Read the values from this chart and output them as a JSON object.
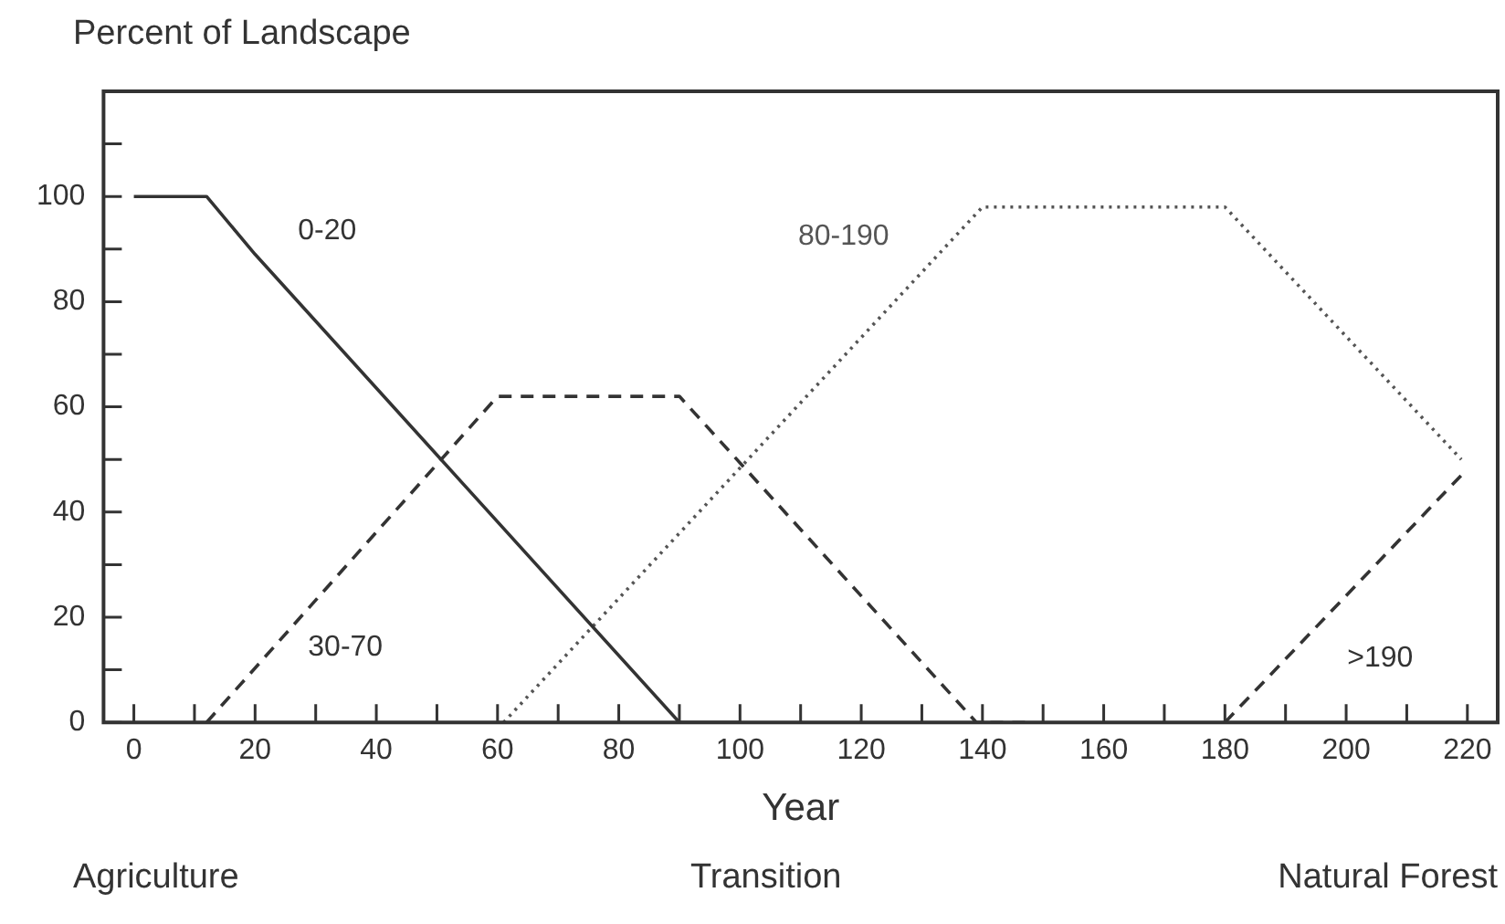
{
  "chart_data": {
    "type": "line",
    "ylabel": "Percent of Landscape",
    "xlabel": "Year",
    "xlim": [
      -5,
      225
    ],
    "ylim": [
      0,
      120
    ],
    "xticks": [
      0,
      {
        "value": 10,
        "label": null
      },
      20,
      {
        "value": 30,
        "label": null
      },
      40,
      {
        "value": 50,
        "label": null
      },
      60,
      {
        "value": 70,
        "label": null
      },
      80,
      {
        "value": 90,
        "label": null
      },
      100,
      {
        "value": 110,
        "label": null
      },
      120,
      {
        "value": 130,
        "label": null
      },
      140,
      {
        "value": 150,
        "label": null
      },
      160,
      {
        "value": 170,
        "label": null
      },
      180,
      {
        "value": 190,
        "label": null
      },
      200,
      {
        "value": 210,
        "label": null
      },
      220
    ],
    "yticks": [
      0,
      {
        "value": 10,
        "label": null
      },
      20,
      {
        "value": 30,
        "label": null
      },
      40,
      {
        "value": 50,
        "label": null
      },
      60,
      {
        "value": 70,
        "label": null
      },
      80,
      {
        "value": 90,
        "label": null
      },
      100,
      {
        "value": 110,
        "label": null
      }
    ],
    "grid": false,
    "legend": false,
    "marker": "none",
    "series": [
      {
        "name": "0-20",
        "color": "#333333",
        "line_style": "solid",
        "x": [
          0,
          12,
          20,
          90,
          100
        ],
        "values": [
          100,
          100,
          89,
          0,
          0
        ]
      },
      {
        "name": "30-70",
        "color": "#333333",
        "line_style": "dashed",
        "x": [
          12,
          60,
          90,
          139,
          148
        ],
        "values": [
          0,
          62,
          62,
          0,
          0
        ]
      },
      {
        "name": "80-190",
        "color": "#555555",
        "line_style": "dotted",
        "x": [
          61,
          140,
          180,
          219
        ],
        "values": [
          0,
          98,
          98,
          50
        ]
      },
      {
        "name": ">190",
        "color": "#333333",
        "line_style": "dashed",
        "x": [
          180,
          219
        ],
        "values": [
          0,
          47
        ]
      }
    ],
    "annotations": [
      "Agriculture",
      "Transition",
      "Natural Forest"
    ]
  }
}
